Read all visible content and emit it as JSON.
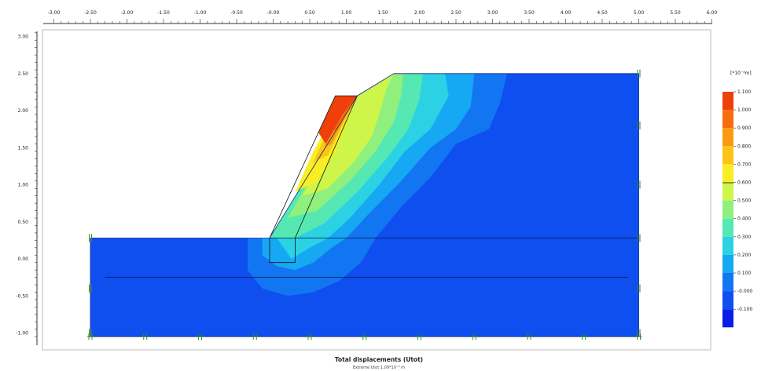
{
  "chart_data": {
    "type": "heatmap",
    "title": "Total displacements (Utot)",
    "subtitle": "Extreme Utot 1.09*10⁻³ m",
    "x_ticks": [
      "-3.00",
      "-2.50",
      "-2.00",
      "-1.50",
      "-1.00",
      "-0.50",
      "-0.00",
      "0.50",
      "1.00",
      "1.50",
      "2.00",
      "2.50",
      "3.00",
      "3.50",
      "4.00",
      "4.50",
      "5.00",
      "5.50",
      "6.00"
    ],
    "y_ticks": [
      "3.00",
      "2.50",
      "2.00",
      "1.50",
      "1.00",
      "0.50",
      "0.00",
      "-0.50",
      "-1.00"
    ],
    "xlim": [
      -3.0,
      6.0
    ],
    "ylim": [
      -1.0,
      3.0
    ],
    "legend_unit": "[*10⁻³m]",
    "legend_placement": "right",
    "legend_levels": [
      {
        "label": "1.100",
        "color": "#f0400a"
      },
      {
        "label": "1.000",
        "color": "#f76d0e"
      },
      {
        "label": "0.900",
        "color": "#fb9a12"
      },
      {
        "label": "0.800",
        "color": "#fcc415"
      },
      {
        "label": "0.700",
        "color": "#f9ee22"
      },
      {
        "label": "0.600",
        "color": "#cdf54a"
      },
      {
        "label": "0.500",
        "color": "#8ff07e"
      },
      {
        "label": "0.400",
        "color": "#55e8b2"
      },
      {
        "label": "0.300",
        "color": "#2ad2e4"
      },
      {
        "label": "0.200",
        "color": "#17a8f4"
      },
      {
        "label": "0.100",
        "color": "#1276f2"
      },
      {
        "label": "-0.000",
        "color": "#0f4ff0"
      },
      {
        "label": "-0.100",
        "color": "#0a1ee6"
      }
    ],
    "model": {
      "boundary": [
        [
          -2.5,
          0.28
        ],
        [
          -0.05,
          0.28
        ],
        [
          1.15,
          2.2
        ],
        [
          1.65,
          2.5
        ],
        [
          5.0,
          2.5
        ],
        [
          5.0,
          -1.05
        ],
        [
          -2.5,
          -1.05
        ]
      ],
      "wall": [
        [
          -0.05,
          0.28
        ],
        [
          0.85,
          2.2
        ],
        [
          1.15,
          2.2
        ],
        [
          0.3,
          0.28
        ],
        [
          0.3,
          -0.05
        ],
        [
          -0.05,
          -0.05
        ]
      ],
      "wall_color": "#f0400a"
    },
    "contours": [
      {
        "level": "0.100",
        "color": "#1276f2",
        "points": [
          [
            -0.35,
            0.28
          ],
          [
            -0.35,
            -0.15
          ],
          [
            -0.15,
            -0.4
          ],
          [
            0.2,
            -0.5
          ],
          [
            0.55,
            -0.45
          ],
          [
            0.9,
            -0.3
          ],
          [
            1.2,
            -0.05
          ],
          [
            1.4,
            0.28
          ],
          [
            1.75,
            0.7
          ],
          [
            2.15,
            1.1
          ],
          [
            2.5,
            1.55
          ],
          [
            2.95,
            1.75
          ],
          [
            3.1,
            2.1
          ],
          [
            3.2,
            2.5
          ],
          [
            1.65,
            2.5
          ],
          [
            1.15,
            2.2
          ],
          [
            -0.05,
            0.28
          ]
        ]
      },
      {
        "level": "0.200",
        "color": "#17a8f4",
        "points": [
          [
            -0.15,
            0.28
          ],
          [
            -0.15,
            0.05
          ],
          [
            0.05,
            -0.1
          ],
          [
            0.3,
            -0.15
          ],
          [
            0.55,
            -0.05
          ],
          [
            0.8,
            0.15
          ],
          [
            1.0,
            0.28
          ],
          [
            1.3,
            0.6
          ],
          [
            1.75,
            1.05
          ],
          [
            2.15,
            1.5
          ],
          [
            2.5,
            1.75
          ],
          [
            2.7,
            2.05
          ],
          [
            2.75,
            2.5
          ],
          [
            1.65,
            2.5
          ],
          [
            1.15,
            2.2
          ],
          [
            -0.05,
            0.28
          ]
        ]
      },
      {
        "level": "0.300",
        "color": "#2ad2e4",
        "points": [
          [
            0.05,
            0.28
          ],
          [
            0.25,
            0.0
          ],
          [
            0.5,
            0.15
          ],
          [
            0.75,
            0.28
          ],
          [
            1.05,
            0.55
          ],
          [
            1.45,
            1.0
          ],
          [
            1.8,
            1.45
          ],
          [
            2.15,
            1.75
          ],
          [
            2.4,
            2.2
          ],
          [
            2.35,
            2.5
          ],
          [
            1.65,
            2.5
          ],
          [
            1.15,
            2.2
          ],
          [
            -0.05,
            0.28
          ]
        ]
      },
      {
        "level": "0.400",
        "color": "#55e8b2",
        "points": [
          [
            -0.05,
            0.28
          ],
          [
            0.3,
            0.28
          ],
          [
            0.7,
            0.48
          ],
          [
            1.15,
            0.9
          ],
          [
            1.55,
            1.35
          ],
          [
            1.85,
            1.75
          ],
          [
            2.0,
            2.15
          ],
          [
            2.05,
            2.5
          ],
          [
            1.65,
            2.5
          ],
          [
            1.15,
            2.2
          ]
        ]
      },
      {
        "level": "0.500",
        "color": "#8ff07e",
        "points": [
          [
            0.2,
            0.55
          ],
          [
            0.6,
            0.65
          ],
          [
            1.05,
            1.05
          ],
          [
            1.4,
            1.45
          ],
          [
            1.65,
            1.85
          ],
          [
            1.75,
            2.2
          ],
          [
            1.78,
            2.5
          ],
          [
            1.65,
            2.5
          ],
          [
            1.15,
            2.2
          ]
        ]
      },
      {
        "level": "0.600",
        "color": "#cdf54a",
        "points": [
          [
            0.4,
            0.85
          ],
          [
            0.75,
            0.95
          ],
          [
            1.1,
            1.3
          ],
          [
            1.35,
            1.65
          ],
          [
            1.45,
            1.95
          ],
          [
            1.55,
            2.3
          ],
          [
            1.65,
            2.5
          ],
          [
            1.15,
            2.2
          ]
        ]
      },
      {
        "level": "0.700",
        "color": "#f9ee22",
        "points": [
          [
            0.3,
            0.9
          ],
          [
            0.55,
            1.45
          ],
          [
            0.8,
            1.9
          ],
          [
            0.95,
            2.1
          ],
          [
            1.15,
            2.2
          ],
          [
            0.85,
            1.45
          ],
          [
            0.6,
            1.05
          ]
        ]
      },
      {
        "level": "0.800",
        "color": "#fcc415",
        "points": [
          [
            0.55,
            1.3
          ],
          [
            0.75,
            1.75
          ],
          [
            0.95,
            2.05
          ],
          [
            1.05,
            2.15
          ],
          [
            1.15,
            2.2
          ],
          [
            0.95,
            1.8
          ],
          [
            0.75,
            1.4
          ]
        ]
      },
      {
        "level": "0.900",
        "color": "#fb9a12",
        "points": [
          [
            0.7,
            1.5
          ],
          [
            0.85,
            1.85
          ],
          [
            1.0,
            2.1
          ],
          [
            1.1,
            2.2
          ],
          [
            1.15,
            2.2
          ],
          [
            0.98,
            1.9
          ],
          [
            0.8,
            1.55
          ]
        ]
      },
      {
        "level": "1.000",
        "color": "#f76d0e",
        "points": [
          [
            0.78,
            1.7
          ],
          [
            0.92,
            2.0
          ],
          [
            1.05,
            2.2
          ],
          [
            1.15,
            2.2
          ],
          [
            1.02,
            2.0
          ],
          [
            0.88,
            1.75
          ]
        ]
      }
    ],
    "lines": [
      {
        "name": "",
        "points": [
          [
            -0.05,
            0.28
          ],
          [
            5.0,
            0.28
          ]
        ]
      },
      {
        "name": "",
        "points": [
          [
            -2.3,
            -0.25
          ],
          [
            4.85,
            -0.25
          ]
        ]
      }
    ],
    "fixities_x": [
      -2.5,
      -1.75,
      -1.0,
      -0.25,
      0.5,
      1.25,
      2.0,
      2.75,
      3.5,
      4.25,
      5.0
    ],
    "fixities_y": [
      2.5,
      1.8,
      1.0,
      0.28,
      -0.4,
      -1.0
    ]
  }
}
